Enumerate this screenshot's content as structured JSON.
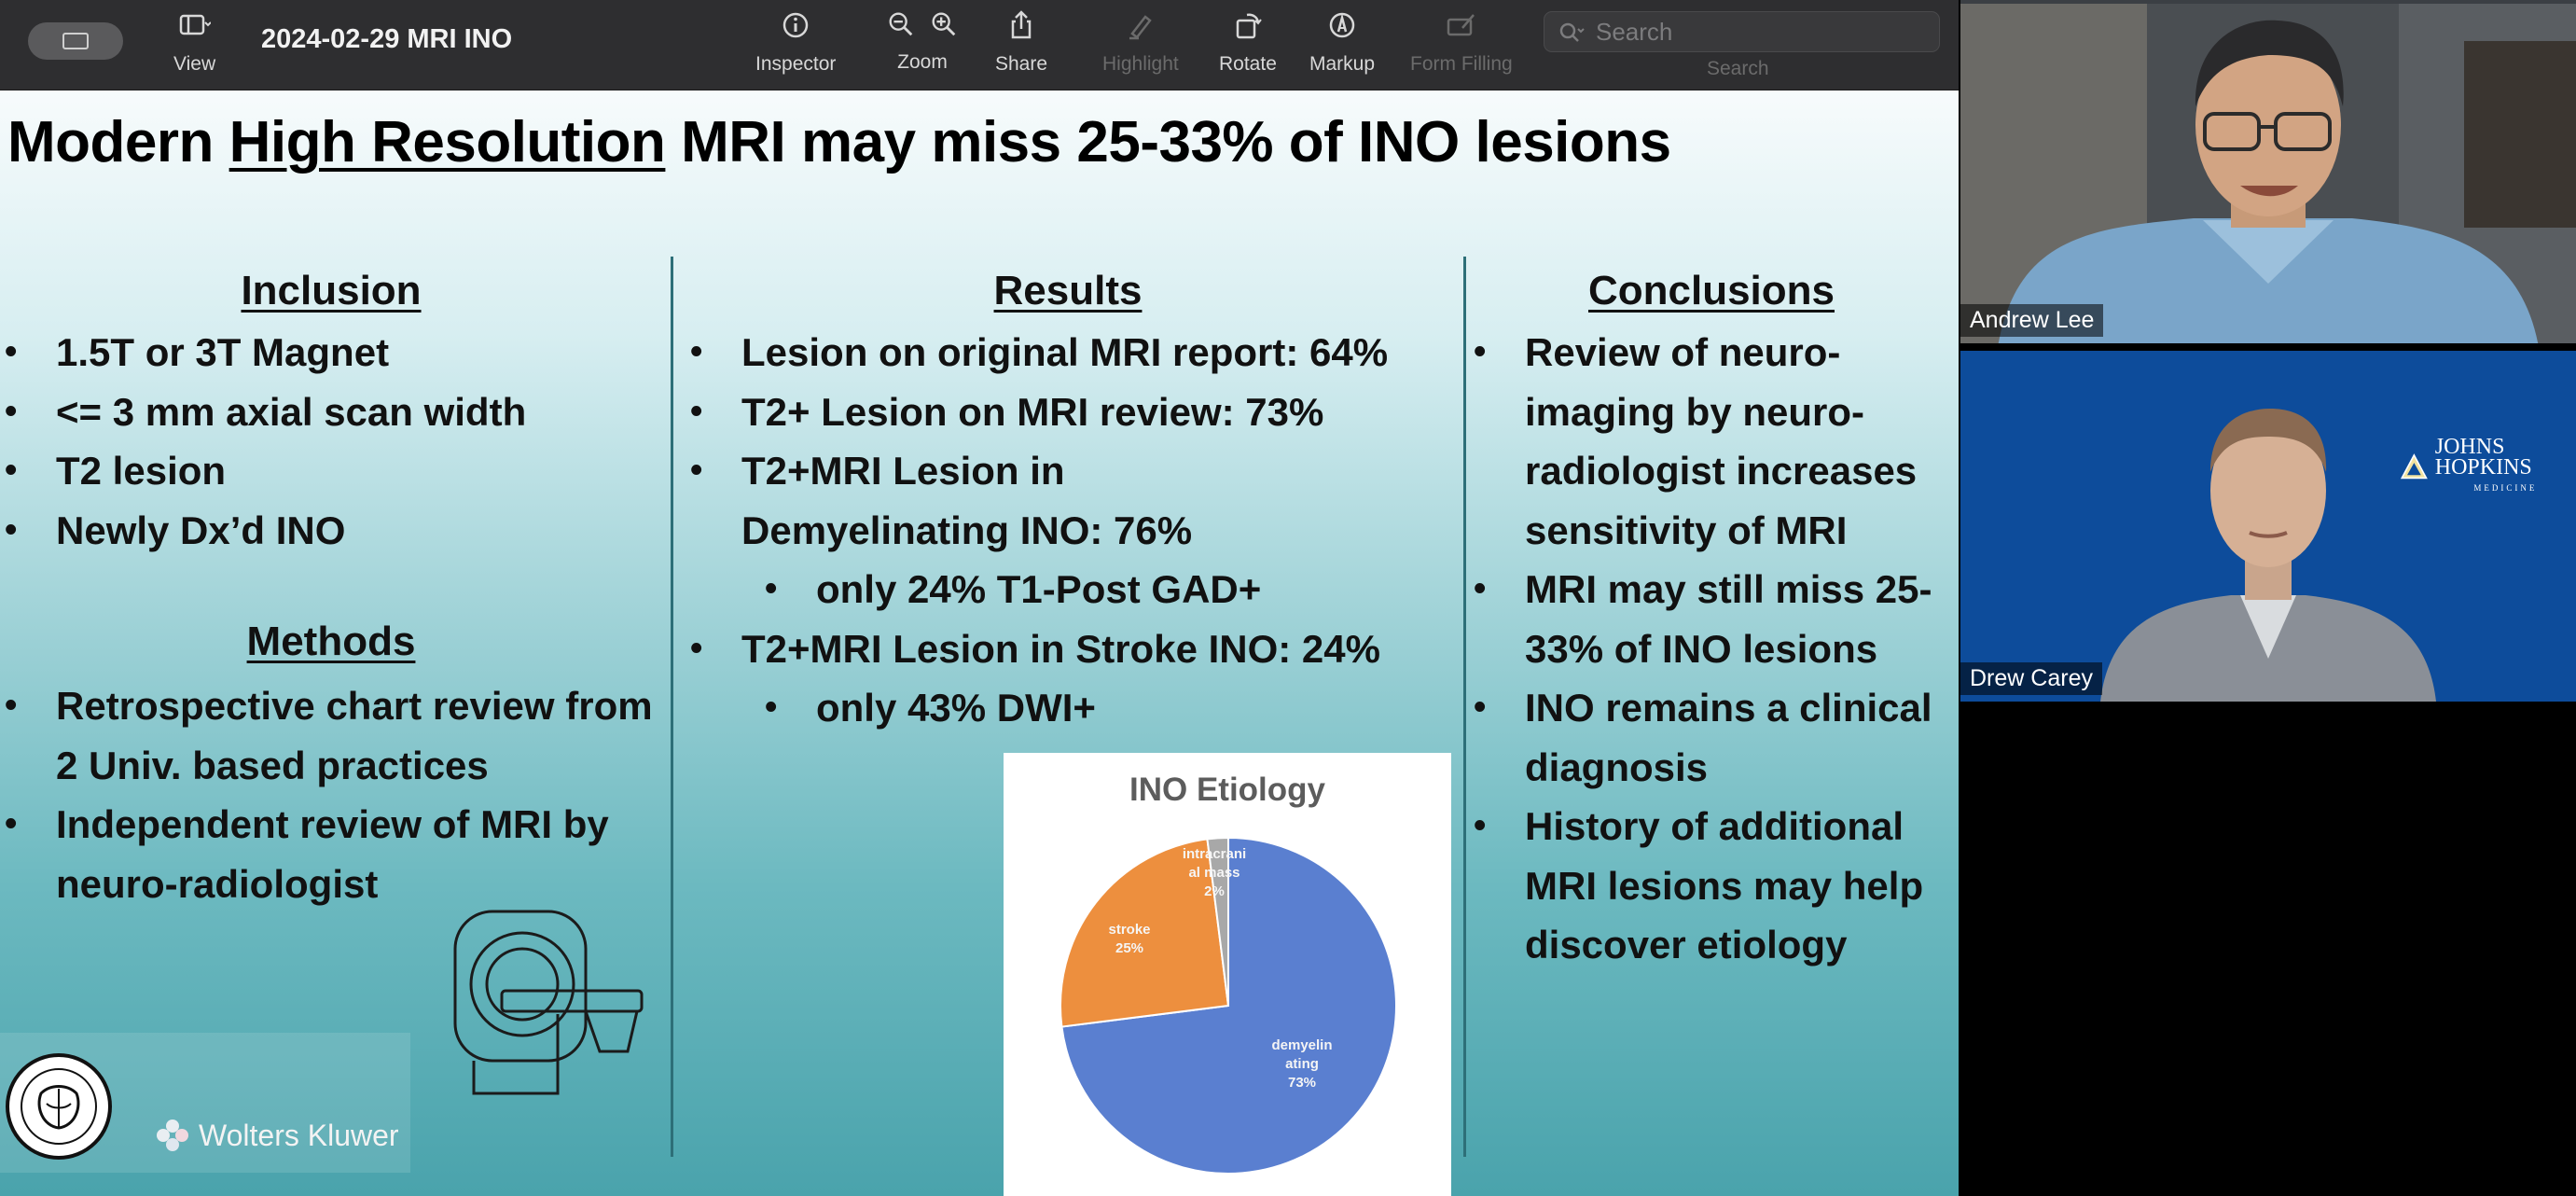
{
  "toolbar": {
    "title": "2024-02-29 MRI INO",
    "view_label": "View",
    "inspector_label": "Inspector",
    "zoom_label": "Zoom",
    "share_label": "Share",
    "highlight_label": "Highlight",
    "rotate_label": "Rotate",
    "markup_label": "Markup",
    "form_filling_label": "Form Filling",
    "search_placeholder": "Search",
    "search_label": "Search"
  },
  "slide": {
    "title_prefix": "Modern ",
    "title_underlined": "High Resolution",
    "title_suffix": " MRI may miss 25-33% of INO lesions",
    "inclusion": {
      "heading": "Inclusion",
      "items": [
        "1.5T or 3T Magnet",
        "<= 3 mm axial scan width",
        "T2 lesion",
        "Newly Dx’d INO"
      ]
    },
    "methods": {
      "heading": "Methods",
      "items": [
        "Retrospective chart review from 2 Univ. based practices",
        "Independent review of MRI by neuro-radiologist"
      ]
    },
    "results": {
      "heading": "Results",
      "items": [
        {
          "text": "Lesion on original MRI report: 64%",
          "sub": false
        },
        {
          "text": "T2+ Lesion on MRI review: 73%",
          "sub": false
        },
        {
          "text": "T2+MRI Lesion in Demyelinating INO: 76%",
          "sub": false
        },
        {
          "text": "only 24% T1-Post GAD+",
          "sub": true
        },
        {
          "text": "T2+MRI Lesion in Stroke INO: 24%",
          "sub": false
        },
        {
          "text": "only 43% DWI+",
          "sub": true
        }
      ]
    },
    "conclusions": {
      "heading": "Conclusions",
      "items": [
        "Review of neuro-imaging by neuro-radiologist increases sensitivity of MRI",
        "MRI may still miss 25-33% of INO lesions",
        "INO remains a clinical diagnosis",
        "History of additional MRI lesions may help discover etiology"
      ]
    },
    "logo_text": "Wolters Kluwer"
  },
  "chart_data": {
    "type": "pie",
    "title": "INO Etiology",
    "slices": [
      {
        "label": "demyelin ating",
        "value": 73,
        "display": "73%",
        "color": "#5a7fd0"
      },
      {
        "label": "stroke",
        "value": 25,
        "display": "25%",
        "color": "#ed8f3e"
      },
      {
        "label": "intracrani al mass",
        "value": 2,
        "display": "2%",
        "color": "#a8a8a8"
      }
    ]
  },
  "participants": {
    "top": {
      "name": "Andrew Lee"
    },
    "bottom": {
      "name": "Drew Carey",
      "org_logo": "JOHNS HOPKINS",
      "org_sub": "MEDICINE"
    }
  }
}
